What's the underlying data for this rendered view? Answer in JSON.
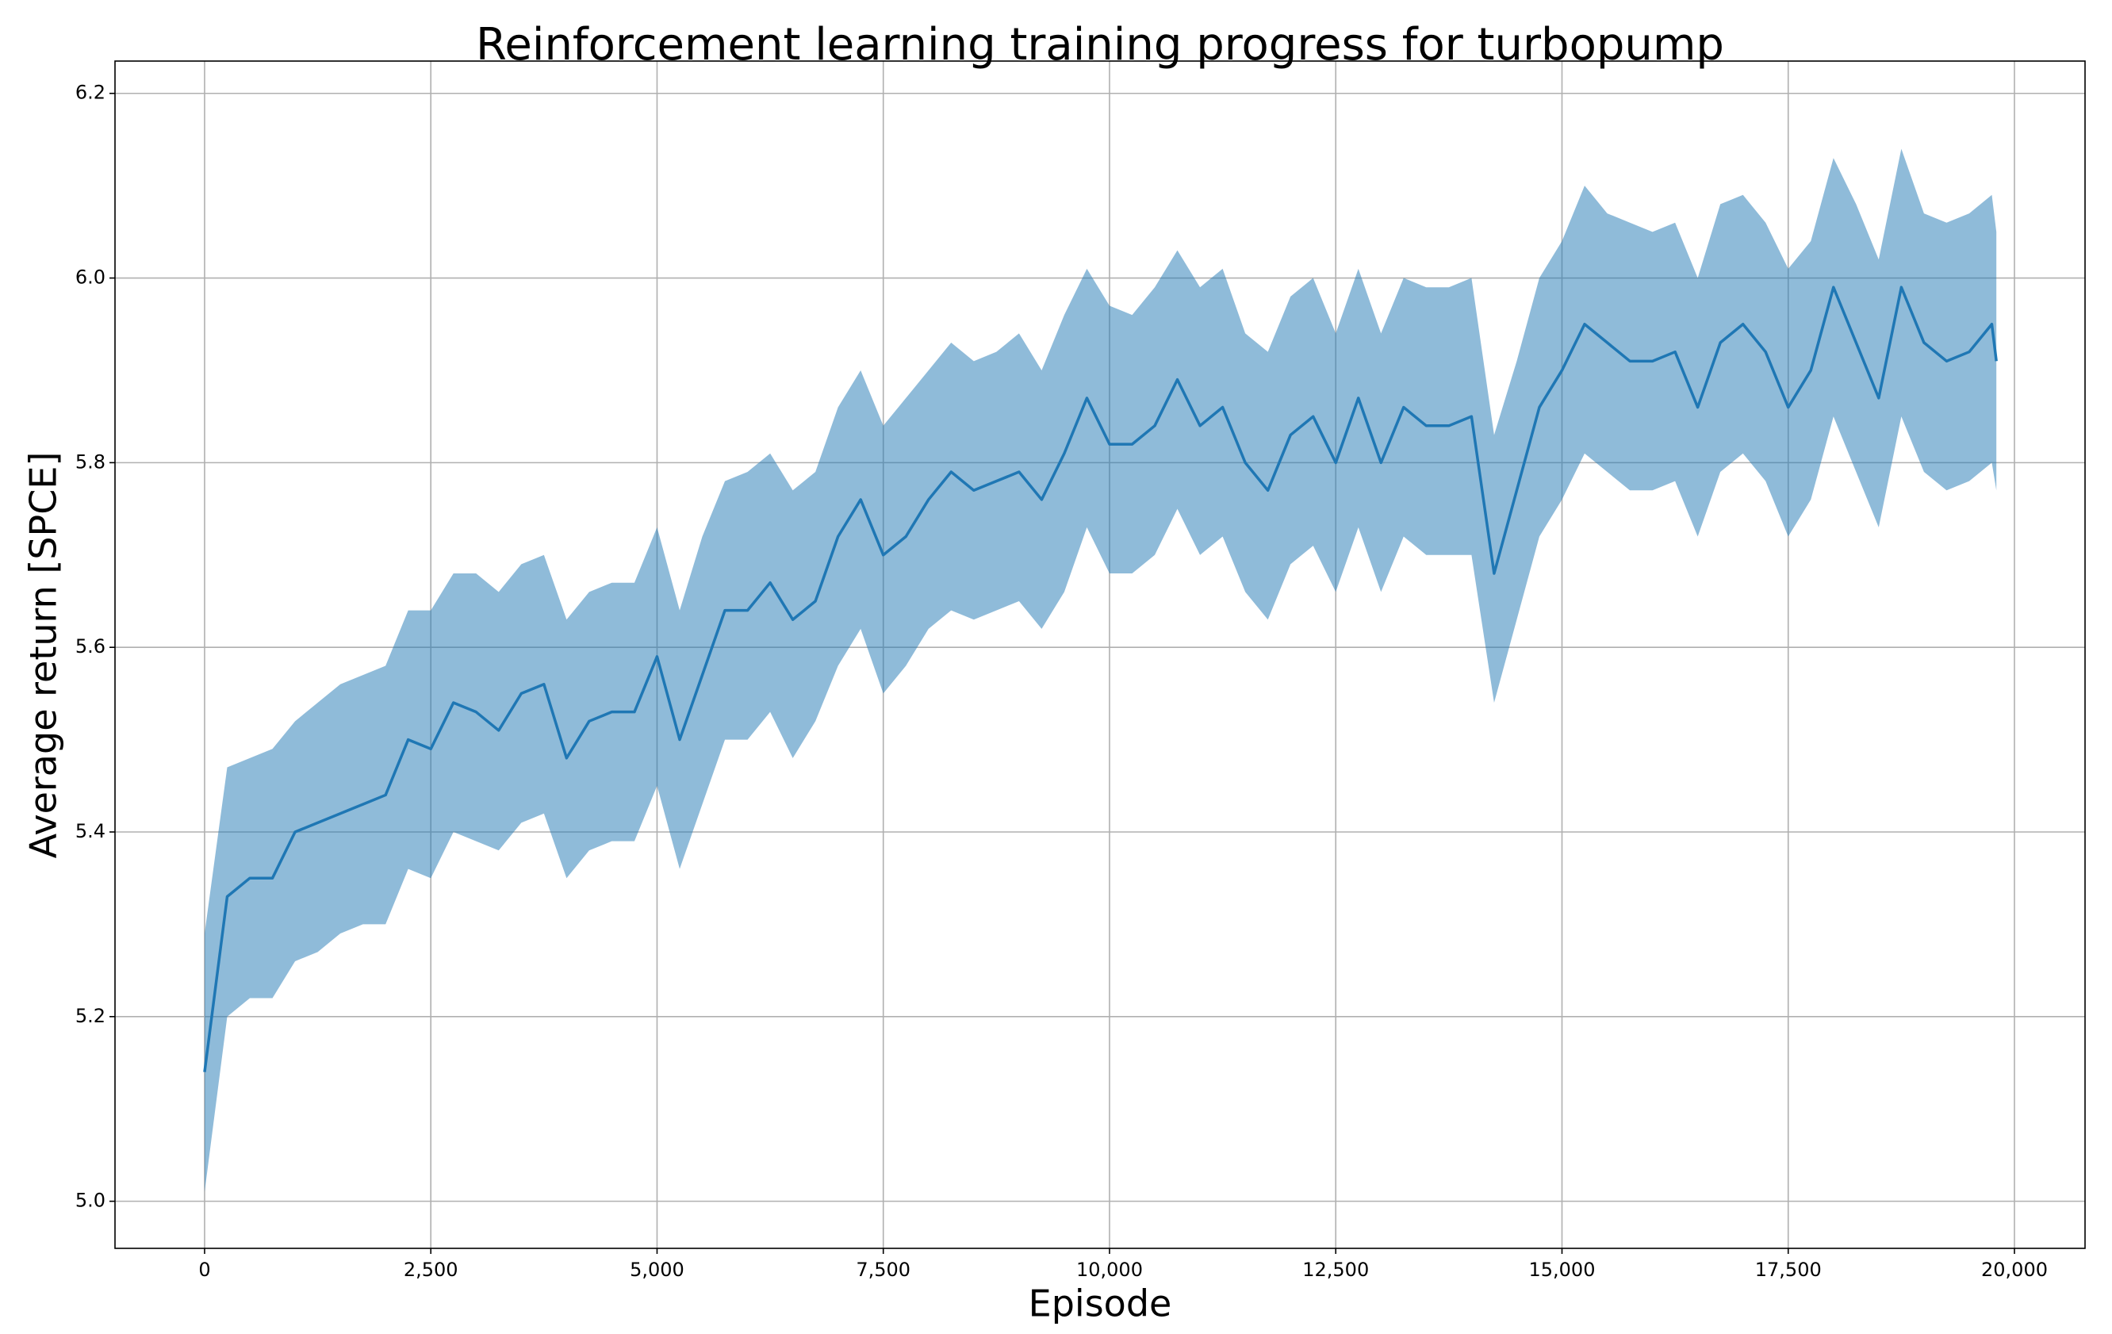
{
  "chart_data": {
    "type": "line",
    "title": "Reinforcement learning training progress for turbopump",
    "xlabel": "Episode",
    "ylabel": "Average return [SPCE]",
    "color": "#1f77b4",
    "band_color": "#1f77b4",
    "grid": true,
    "xlim": [
      -990,
      20780
    ],
    "ylim": [
      4.949,
      6.235
    ],
    "xticks": [
      0,
      {
        "value": 2500,
        "label": "2,500"
      },
      {
        "value": 5000,
        "label": "5,000"
      },
      {
        "value": 7500,
        "label": "7,500"
      },
      {
        "value": 10000,
        "label": "10,000"
      },
      {
        "value": 12500,
        "label": "12,500"
      },
      {
        "value": 15000,
        "label": "15,000"
      },
      {
        "value": 17500,
        "label": "17,500"
      },
      {
        "value": 20000,
        "label": "20,000"
      }
    ],
    "yticks": [
      {
        "value": 5,
        "label": "5.0"
      },
      5.2,
      5.4,
      5.6,
      5.8,
      {
        "value": 6,
        "label": "6.0"
      },
      6.2
    ],
    "x": [
      0,
      250,
      500,
      750,
      1000,
      1250,
      1500,
      1750,
      2000,
      2250,
      2500,
      2750,
      3000,
      3250,
      3500,
      3750,
      4000,
      4250,
      4500,
      4750,
      5000,
      5250,
      5500,
      5750,
      6000,
      6250,
      6500,
      6750,
      7000,
      7250,
      7500,
      7750,
      8000,
      8250,
      8500,
      8750,
      9000,
      9250,
      9500,
      9750,
      10000,
      10250,
      10500,
      10750,
      11000,
      11250,
      11500,
      11750,
      12000,
      12250,
      12500,
      12750,
      13000,
      13250,
      13500,
      13750,
      14000,
      14250,
      14500,
      14750,
      15000,
      15250,
      15500,
      15750,
      16000,
      16250,
      16500,
      16750,
      17000,
      17250,
      17500,
      17750,
      18000,
      18250,
      18500,
      18750,
      19000,
      19250,
      19500,
      19750,
      19800
    ],
    "values": [
      5.14,
      5.33,
      5.35,
      5.35,
      5.4,
      5.41,
      5.42,
      5.43,
      5.44,
      5.5,
      5.49,
      5.54,
      5.53,
      5.51,
      5.55,
      5.56,
      5.48,
      5.52,
      5.53,
      5.53,
      5.59,
      5.5,
      5.57,
      5.64,
      5.64,
      5.67,
      5.63,
      5.65,
      5.72,
      5.76,
      5.7,
      5.72,
      5.76,
      5.79,
      5.77,
      5.78,
      5.79,
      5.76,
      5.81,
      5.87,
      5.82,
      5.82,
      5.84,
      5.89,
      5.84,
      5.86,
      5.8,
      5.77,
      5.83,
      5.85,
      5.8,
      5.87,
      5.8,
      5.86,
      5.84,
      5.84,
      5.85,
      5.68,
      5.77,
      5.86,
      5.9,
      5.95,
      5.93,
      5.91,
      5.91,
      5.92,
      5.86,
      5.93,
      5.95,
      5.92,
      5.86,
      5.9,
      5.99,
      5.93,
      5.87,
      5.99,
      5.93,
      5.91,
      5.92,
      5.95,
      5.91
    ],
    "lower": [
      5.01,
      5.2,
      5.22,
      5.22,
      5.26,
      5.27,
      5.29,
      5.3,
      5.3,
      5.36,
      5.35,
      5.4,
      5.39,
      5.38,
      5.41,
      5.42,
      5.35,
      5.38,
      5.39,
      5.39,
      5.45,
      5.36,
      5.43,
      5.5,
      5.5,
      5.53,
      5.48,
      5.52,
      5.58,
      5.62,
      5.55,
      5.58,
      5.62,
      5.64,
      5.63,
      5.64,
      5.65,
      5.62,
      5.66,
      5.73,
      5.68,
      5.68,
      5.7,
      5.75,
      5.7,
      5.72,
      5.66,
      5.63,
      5.69,
      5.71,
      5.66,
      5.73,
      5.66,
      5.72,
      5.7,
      5.7,
      5.7,
      5.54,
      5.63,
      5.72,
      5.76,
      5.81,
      5.79,
      5.77,
      5.77,
      5.78,
      5.72,
      5.79,
      5.81,
      5.78,
      5.72,
      5.76,
      5.85,
      5.79,
      5.73,
      5.85,
      5.79,
      5.77,
      5.78,
      5.8,
      5.77
    ],
    "upper": [
      5.29,
      5.47,
      5.48,
      5.49,
      5.52,
      5.54,
      5.56,
      5.57,
      5.58,
      5.64,
      5.64,
      5.68,
      5.68,
      5.66,
      5.69,
      5.7,
      5.63,
      5.66,
      5.67,
      5.67,
      5.73,
      5.64,
      5.72,
      5.78,
      5.79,
      5.81,
      5.77,
      5.79,
      5.86,
      5.9,
      5.84,
      5.87,
      5.9,
      5.93,
      5.91,
      5.92,
      5.94,
      5.9,
      5.96,
      6.01,
      5.97,
      5.96,
      5.99,
      6.03,
      5.99,
      6.01,
      5.94,
      5.92,
      5.98,
      6.0,
      5.94,
      6.01,
      5.94,
      6.0,
      5.99,
      5.99,
      6.0,
      5.83,
      5.91,
      6.0,
      6.04,
      6.1,
      6.07,
      6.06,
      6.05,
      6.06,
      6.0,
      6.08,
      6.09,
      6.06,
      6.01,
      6.04,
      6.13,
      6.08,
      6.02,
      6.14,
      6.07,
      6.06,
      6.07,
      6.09,
      6.05
    ]
  }
}
